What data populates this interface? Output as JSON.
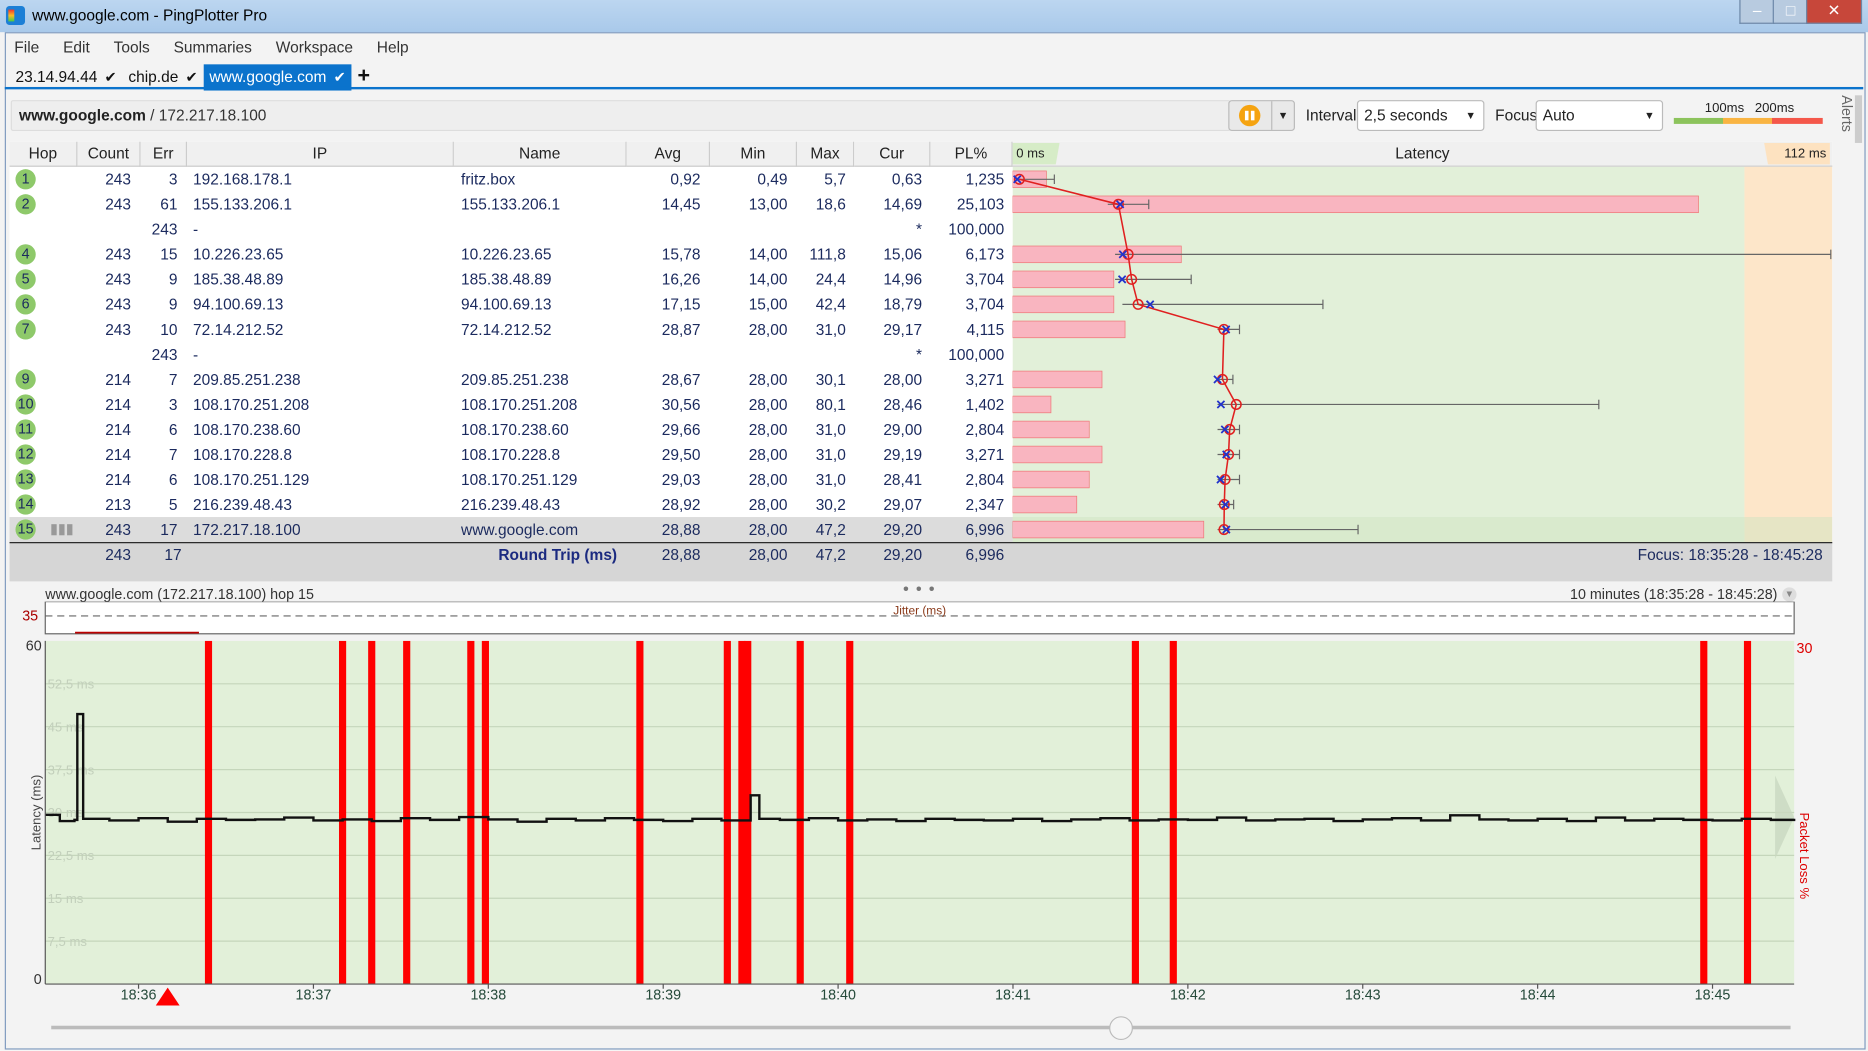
{
  "window": {
    "title": "www.google.com - PingPlotter Pro",
    "controls": [
      "minimize",
      "maximize",
      "close"
    ]
  },
  "menu": [
    "File",
    "Edit",
    "Tools",
    "Summaries",
    "Workspace",
    "Help"
  ],
  "tabs": [
    {
      "label": "23.14.94.44",
      "active": false
    },
    {
      "label": "chip.de",
      "active": false
    },
    {
      "label": "www.google.com",
      "active": true
    }
  ],
  "add_tab": "+",
  "toolbar": {
    "host": "www.google.com",
    "ip": "/ 172.217.18.100",
    "interval_label": "Interval",
    "interval_value": "2,5 seconds",
    "focus_label": "Focus",
    "focus_value": "Auto",
    "legend": [
      "100ms",
      "200ms"
    ],
    "legend_colors": [
      "#8cc35c",
      "#f9b442",
      "#f4574a"
    ],
    "pause_color": "#f5a310"
  },
  "alerts_label": "Alerts",
  "table": {
    "columns": [
      "Hop",
      "Count",
      "Err",
      "IP",
      "Name",
      "Avg",
      "Min",
      "Max",
      "Cur",
      "PL%"
    ],
    "graph": {
      "title": "Latency",
      "min_label": "0 ms",
      "max_label": "112 ms",
      "max_ms": 112,
      "pl_max": 30,
      "ok_color": "#e2f0d9",
      "warn_color": "#fde6c9",
      "bar_color": "#f9b5c0"
    },
    "rows": [
      {
        "hop": "1",
        "count": "243",
        "err": "3",
        "ip": "192.168.178.1",
        "name": "fritz.box",
        "avg": "0,92",
        "min": "0,49",
        "max": "5,7",
        "cur": "0,63",
        "pl": "1,235"
      },
      {
        "hop": "2",
        "count": "243",
        "err": "61",
        "ip": "155.133.206.1",
        "name": "155.133.206.1",
        "avg": "14,45",
        "min": "13,00",
        "max": "18,6",
        "cur": "14,69",
        "pl": "25,103"
      },
      {
        "hop": "",
        "count": "",
        "err": "243",
        "ip": "-",
        "name": "",
        "avg": "",
        "min": "",
        "max": "",
        "cur": "*",
        "pl": "100,000"
      },
      {
        "hop": "4",
        "count": "243",
        "err": "15",
        "ip": "10.226.23.65",
        "name": "10.226.23.65",
        "avg": "15,78",
        "min": "14,00",
        "max": "111,8",
        "cur": "15,06",
        "pl": "6,173"
      },
      {
        "hop": "5",
        "count": "243",
        "err": "9",
        "ip": "185.38.48.89",
        "name": "185.38.48.89",
        "avg": "16,26",
        "min": "14,00",
        "max": "24,4",
        "cur": "14,96",
        "pl": "3,704"
      },
      {
        "hop": "6",
        "count": "243",
        "err": "9",
        "ip": "94.100.69.13",
        "name": "94.100.69.13",
        "avg": "17,15",
        "min": "15,00",
        "max": "42,4",
        "cur": "18,79",
        "pl": "3,704"
      },
      {
        "hop": "7",
        "count": "243",
        "err": "10",
        "ip": "72.14.212.52",
        "name": "72.14.212.52",
        "avg": "28,87",
        "min": "28,00",
        "max": "31,0",
        "cur": "29,17",
        "pl": "4,115"
      },
      {
        "hop": "",
        "count": "",
        "err": "243",
        "ip": "-",
        "name": "",
        "avg": "",
        "min": "",
        "max": "",
        "cur": "*",
        "pl": "100,000"
      },
      {
        "hop": "9",
        "count": "214",
        "err": "7",
        "ip": "209.85.251.238",
        "name": "209.85.251.238",
        "avg": "28,67",
        "min": "28,00",
        "max": "30,1",
        "cur": "28,00",
        "pl": "3,271"
      },
      {
        "hop": "10",
        "count": "214",
        "err": "3",
        "ip": "108.170.251.208",
        "name": "108.170.251.208",
        "avg": "30,56",
        "min": "28,00",
        "max": "80,1",
        "cur": "28,46",
        "pl": "1,402"
      },
      {
        "hop": "11",
        "count": "214",
        "err": "6",
        "ip": "108.170.238.60",
        "name": "108.170.238.60",
        "avg": "29,66",
        "min": "28,00",
        "max": "31,0",
        "cur": "29,00",
        "pl": "2,804"
      },
      {
        "hop": "12",
        "count": "214",
        "err": "7",
        "ip": "108.170.228.8",
        "name": "108.170.228.8",
        "avg": "29,50",
        "min": "28,00",
        "max": "31,0",
        "cur": "29,19",
        "pl": "3,271"
      },
      {
        "hop": "13",
        "count": "214",
        "err": "6",
        "ip": "108.170.251.129",
        "name": "108.170.251.129",
        "avg": "29,03",
        "min": "28,00",
        "max": "31,0",
        "cur": "28,41",
        "pl": "2,804"
      },
      {
        "hop": "14",
        "count": "213",
        "err": "5",
        "ip": "216.239.48.43",
        "name": "216.239.48.43",
        "avg": "28,92",
        "min": "28,00",
        "max": "30,2",
        "cur": "29,07",
        "pl": "2,347"
      },
      {
        "hop": "15",
        "count": "243",
        "err": "17",
        "ip": "172.217.18.100",
        "name": "www.google.com",
        "avg": "28,88",
        "min": "28,00",
        "max": "47,2",
        "cur": "29,20",
        "pl": "6,996",
        "selected": true
      }
    ],
    "summary": {
      "count": "243",
      "err": "17",
      "label": "Round Trip (ms)",
      "avg": "28,88",
      "min": "28,00",
      "max": "47,2",
      "cur": "29,20",
      "pl": "6,996",
      "focus": "Focus: 18:35:28 - 18:45:28"
    }
  },
  "chart_data": {
    "type": "line",
    "title": "www.google.com (172.217.18.100) hop 15",
    "range_label": "10 minutes (18:35:28 - 18:45:28)",
    "jitter": {
      "label": "Jitter (ms)",
      "threshold": "35"
    },
    "ylabel": "Latency (ms)",
    "y2label": "Packet Loss %",
    "ylim": [
      0,
      60
    ],
    "y2lim": [
      0,
      30
    ],
    "y_axis_labels": [
      "60",
      "0"
    ],
    "y2_axis_labels": [
      "30"
    ],
    "ygrid_labels": [
      "52,5 ms",
      "45 ms",
      "37,5 ms",
      "30 ms",
      "22,5 ms",
      "15 ms",
      "7,5 ms"
    ],
    "ygrid_values": [
      52.5,
      45,
      37.5,
      30,
      22.5,
      15,
      7.5
    ],
    "xlim": [
      "18:35:28",
      "18:45:28"
    ],
    "xticks": [
      "18:36",
      "18:37",
      "18:38",
      "18:39",
      "18:40",
      "18:41",
      "18:42",
      "18:43",
      "18:44",
      "18:45"
    ],
    "grid": true,
    "background": "#e2f0d9",
    "line_color": "#111111",
    "loss_color": "#ff0000",
    "latency": [
      [
        "18:35:28",
        29.6
      ],
      [
        "18:35:33",
        28.5
      ],
      [
        "18:35:38",
        28.7
      ],
      [
        "18:35:39",
        47.2
      ],
      [
        "18:35:41",
        28.9
      ],
      [
        "18:35:50",
        28.6
      ],
      [
        "18:36:00",
        29.0
      ],
      [
        "18:36:10",
        28.4
      ],
      [
        "18:36:20",
        28.9
      ],
      [
        "18:36:30",
        28.7
      ],
      [
        "18:36:40",
        28.8
      ],
      [
        "18:36:50",
        29.1
      ],
      [
        "18:37:00",
        28.6
      ],
      [
        "18:37:10",
        28.8
      ],
      [
        "18:37:20",
        28.5
      ],
      [
        "18:37:30",
        29.0
      ],
      [
        "18:37:40",
        28.7
      ],
      [
        "18:37:50",
        29.2
      ],
      [
        "18:38:00",
        28.8
      ],
      [
        "18:38:10",
        28.4
      ],
      [
        "18:38:20",
        28.9
      ],
      [
        "18:38:30",
        28.6
      ],
      [
        "18:38:40",
        29.0
      ],
      [
        "18:38:50",
        28.7
      ],
      [
        "18:39:00",
        28.5
      ],
      [
        "18:39:10",
        28.9
      ],
      [
        "18:39:20",
        28.6
      ],
      [
        "18:39:30",
        33.0
      ],
      [
        "18:39:33",
        28.9
      ],
      [
        "18:39:40",
        28.7
      ],
      [
        "18:39:50",
        29.0
      ],
      [
        "18:40:00",
        28.6
      ],
      [
        "18:40:10",
        28.8
      ],
      [
        "18:40:20",
        28.5
      ],
      [
        "18:40:30",
        28.9
      ],
      [
        "18:40:40",
        28.7
      ],
      [
        "18:40:50",
        28.6
      ],
      [
        "18:41:00",
        28.9
      ],
      [
        "18:41:10",
        28.5
      ],
      [
        "18:41:20",
        28.8
      ],
      [
        "18:41:30",
        29.0
      ],
      [
        "18:41:40",
        28.6
      ],
      [
        "18:41:50",
        28.8
      ],
      [
        "18:42:00",
        28.7
      ],
      [
        "18:42:10",
        29.1
      ],
      [
        "18:42:20",
        28.6
      ],
      [
        "18:42:30",
        28.8
      ],
      [
        "18:42:40",
        28.9
      ],
      [
        "18:42:50",
        28.5
      ],
      [
        "18:43:00",
        28.8
      ],
      [
        "18:43:10",
        29.0
      ],
      [
        "18:43:20",
        28.6
      ],
      [
        "18:43:30",
        29.5
      ],
      [
        "18:43:40",
        28.8
      ],
      [
        "18:43:50",
        28.6
      ],
      [
        "18:44:00",
        28.9
      ],
      [
        "18:44:10",
        28.5
      ],
      [
        "18:44:20",
        29.1
      ],
      [
        "18:44:30",
        28.6
      ],
      [
        "18:44:40",
        28.9
      ],
      [
        "18:44:50",
        28.7
      ],
      [
        "18:45:00",
        28.6
      ],
      [
        "18:45:10",
        28.9
      ],
      [
        "18:45:20",
        28.7
      ],
      [
        "18:45:28",
        28.9
      ]
    ],
    "packet_loss_pct": 100,
    "packet_loss_times": [
      "18:36:24",
      "18:37:10",
      "18:37:20",
      "18:37:32",
      "18:37:54",
      "18:37:59",
      "18:38:52",
      "18:39:22",
      "18:39:27",
      "18:39:29",
      "18:39:47",
      "18:40:04",
      "18:41:42",
      "18:41:55",
      "18:44:57",
      "18:45:12"
    ],
    "marker_time": "18:36:10"
  }
}
